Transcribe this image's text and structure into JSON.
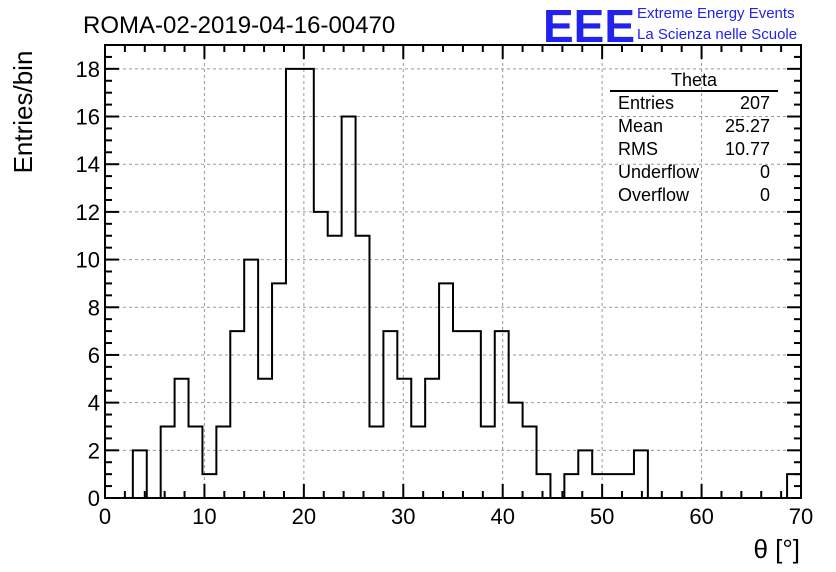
{
  "chart_data": {
    "type": "histogram",
    "title": "ROMA-02-2019-04-16-00470",
    "xlabel": "θ [°]",
    "ylabel": "Entries/bin",
    "xlim": [
      0,
      70
    ],
    "ylim": [
      0,
      19
    ],
    "x_ticks": [
      0,
      10,
      20,
      30,
      40,
      50,
      60,
      70
    ],
    "y_ticks": [
      0,
      2,
      4,
      6,
      8,
      10,
      12,
      14,
      16,
      18
    ],
    "grid": true,
    "bin_width": 1.4,
    "bin_values": [
      0,
      0,
      2,
      0,
      3,
      5,
      3,
      1,
      3,
      7,
      10,
      5,
      9,
      18,
      18,
      12,
      11,
      16,
      11,
      3,
      7,
      5,
      3,
      5,
      9,
      7,
      7,
      3,
      7,
      4,
      3,
      1,
      0,
      1,
      2,
      1,
      1,
      1,
      2,
      0,
      0,
      0,
      0,
      0,
      0,
      0,
      0,
      0,
      0,
      1
    ],
    "stats": {
      "name": "Theta",
      "rows": [
        {
          "label": "Entries",
          "value": "207"
        },
        {
          "label": "Mean",
          "value": "25.27"
        },
        {
          "label": "RMS",
          "value": "10.77"
        },
        {
          "label": "Underflow",
          "value": "0"
        },
        {
          "label": "Overflow",
          "value": "0"
        }
      ]
    }
  },
  "logo": {
    "mark": "EEE",
    "line1": "Extreme Energy Events",
    "line2": "La Scienza nelle Scuole"
  },
  "colors": {
    "logo": "#2222ee",
    "grid": "#999999",
    "line": "#000000"
  }
}
